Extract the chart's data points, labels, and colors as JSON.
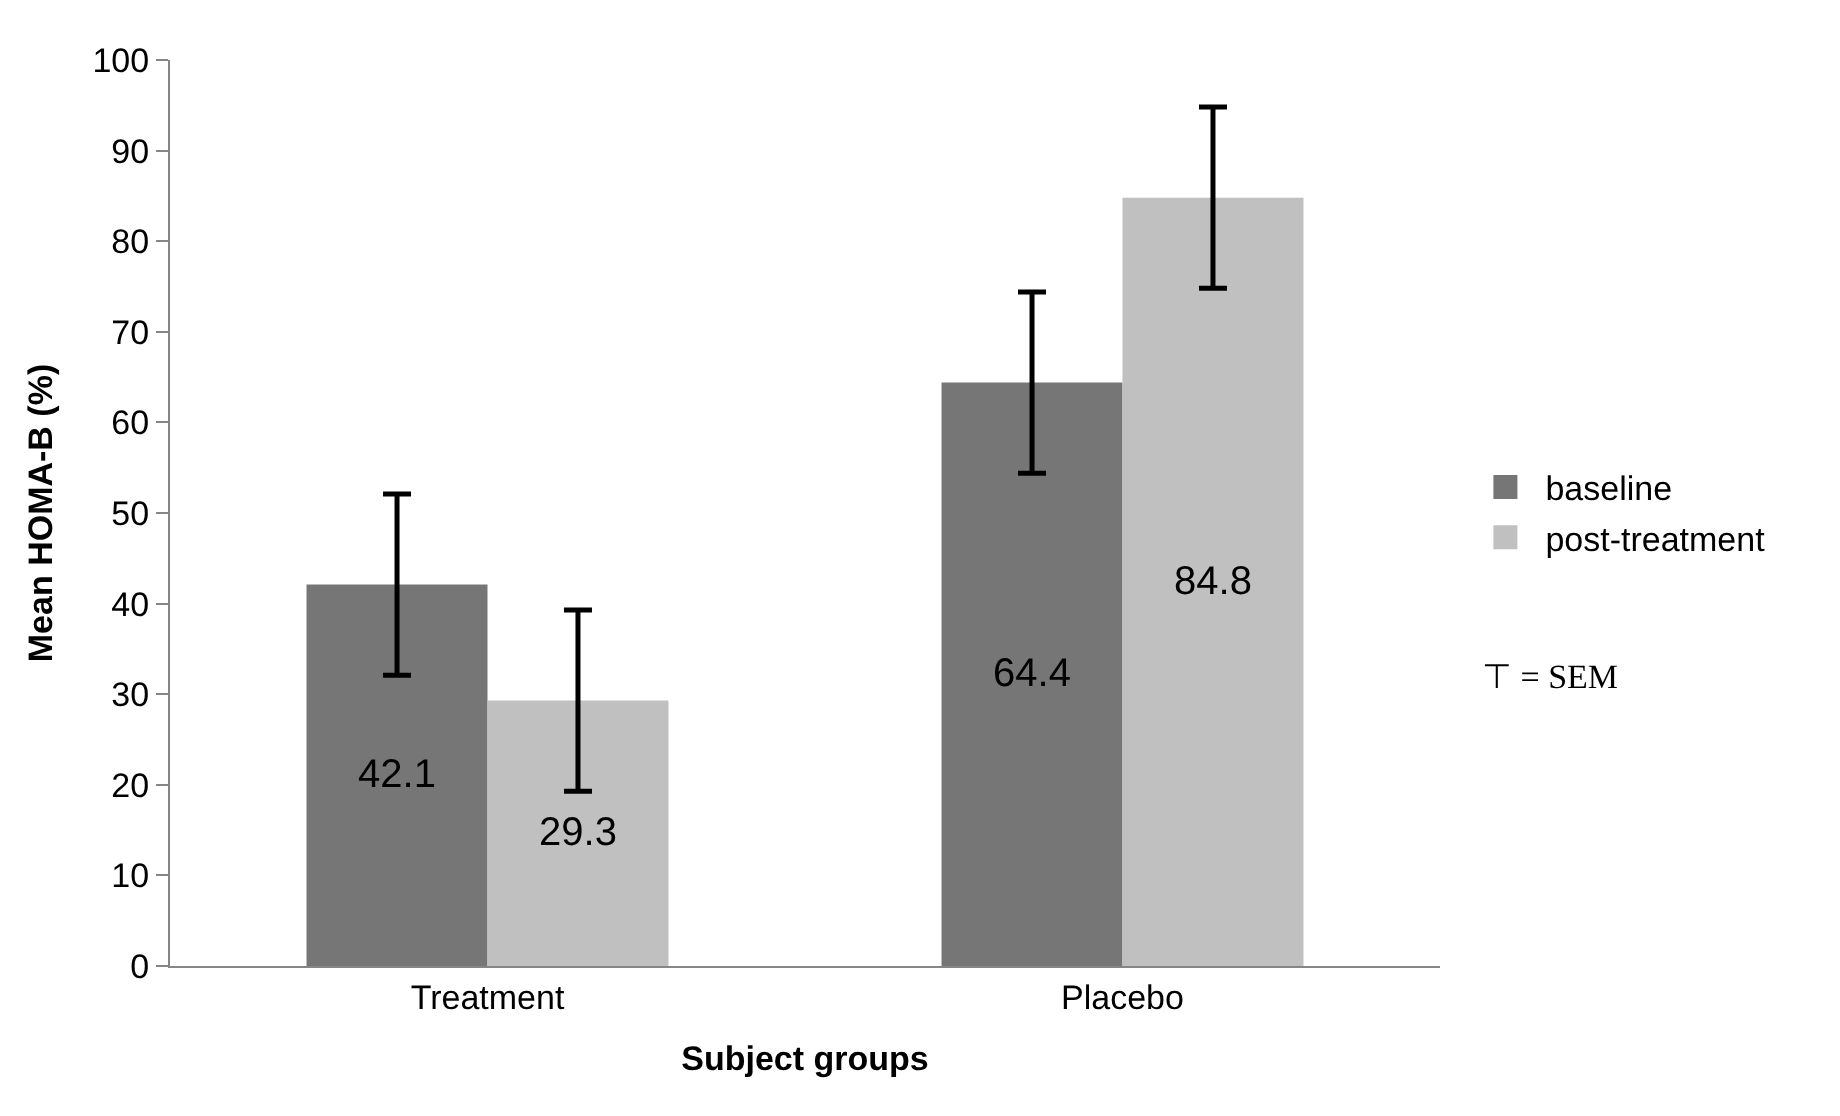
{
  "chart_data": {
    "type": "bar",
    "xlabel": "Subject groups",
    "ylabel": "Mean HOMA-B (%)",
    "categories": [
      "Treatment",
      "Placebo"
    ],
    "series": [
      {
        "name": "baseline",
        "color": "#767676",
        "values": [
          42.1,
          64.4
        ],
        "errors": [
          10,
          10
        ]
      },
      {
        "name": "post-treatment",
        "color": "#c0c0c0",
        "values": [
          29.3,
          84.8
        ],
        "errors": [
          10,
          10
        ]
      }
    ],
    "ylim": [
      0,
      100
    ],
    "yticks": [
      0,
      10,
      20,
      30,
      40,
      50,
      60,
      70,
      80,
      90,
      100
    ],
    "grid": false,
    "legend": "right",
    "data_labels": true,
    "annotations": [
      "⊤ = SEM"
    ]
  }
}
